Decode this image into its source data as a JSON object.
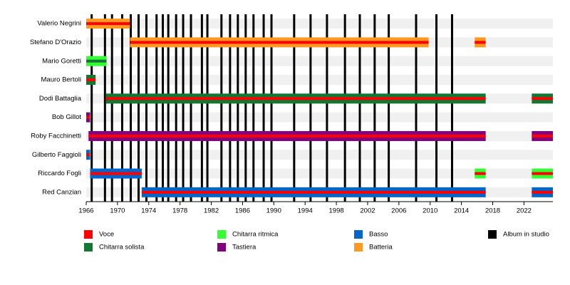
{
  "chart_data": {
    "type": "timeline",
    "xlim": [
      1966,
      2025.7
    ],
    "xticks": [
      1966,
      1970,
      1974,
      1978,
      1982,
      1986,
      1990,
      1994,
      1998,
      2002,
      2006,
      2010,
      2014,
      2018,
      2022
    ],
    "members": [
      {
        "name": "Valerio Negrini",
        "periods": [
          {
            "start": 1966,
            "end": 1971.6,
            "color": "#ff9922",
            "stripe": "#ff0000"
          }
        ]
      },
      {
        "name": "Stefano D'Orazio",
        "periods": [
          {
            "start": 1971.6,
            "end": 2009.8,
            "color": "#ff9922",
            "stripe": "#ff0000"
          },
          {
            "start": 2015.7,
            "end": 2017.1,
            "color": "#ff9922",
            "stripe": "#ff0000"
          }
        ]
      },
      {
        "name": "Mario Goretti",
        "periods": [
          {
            "start": 1966,
            "end": 1968.6,
            "color": "#33ff33",
            "stripe": "#117733"
          }
        ]
      },
      {
        "name": "Mauro Bertoli",
        "periods": [
          {
            "start": 1966,
            "end": 1967.2,
            "color": "#117733",
            "stripe": "#ff0000"
          }
        ]
      },
      {
        "name": "Dodi Battaglia",
        "periods": [
          {
            "start": 1968.5,
            "end": 2017.1,
            "color": "#117733",
            "stripe": "#ff0000"
          },
          {
            "start": 2023,
            "end": 2025.7,
            "color": "#117733",
            "stripe": "#ff0000"
          }
        ]
      },
      {
        "name": "Bob Gillot",
        "periods": [
          {
            "start": 1966,
            "end": 1966.5,
            "color": "#800080",
            "stripe": "#ff0000"
          }
        ]
      },
      {
        "name": "Roby Facchinetti",
        "periods": [
          {
            "start": 1966.3,
            "end": 2017.1,
            "color": "#800080",
            "stripe": "#ff0000"
          },
          {
            "start": 2023,
            "end": 2025.7,
            "color": "#800080",
            "stripe": "#ff0000"
          }
        ]
      },
      {
        "name": "Gilberto Faggioli",
        "periods": [
          {
            "start": 1966,
            "end": 1966.5,
            "color": "#0066cc",
            "stripe": "#ff0000"
          }
        ]
      },
      {
        "name": "Riccardo Fogli",
        "periods": [
          {
            "start": 1966.5,
            "end": 1973.1,
            "color": "#0066cc",
            "stripe": "#ff0000"
          },
          {
            "start": 2015.7,
            "end": 2017.1,
            "color": "#33ff33",
            "stripe": "#ff0000"
          },
          {
            "start": 2023,
            "end": 2025.7,
            "color": "#33ff33",
            "stripe": "#ff0000"
          }
        ]
      },
      {
        "name": "Red Canzian",
        "periods": [
          {
            "start": 1973.1,
            "end": 2017.1,
            "color": "#0066cc",
            "stripe": "#ff0000"
          },
          {
            "start": 2023,
            "end": 2025.7,
            "color": "#0066cc",
            "stripe": "#ff0000"
          }
        ]
      }
    ],
    "albums": {
      "name": "Album in studio",
      "color": "#000000",
      "x": [
        1966.7,
        1968.4,
        1969.3,
        1970.6,
        1971.7,
        1972.7,
        1973.7,
        1975.0,
        1975.8,
        1976.5,
        1977.5,
        1978.4,
        1979.4,
        1980.8,
        1981.5,
        1983.3,
        1984.4,
        1985.4,
        1986.4,
        1987.4,
        1988.7,
        1989.7,
        1992.6,
        1994.7,
        1996.8,
        1999.1,
        2001.0,
        2002.9,
        2004.7,
        2008.2,
        2010.8,
        2012.8
      ]
    },
    "roles": [
      {
        "name": "Voce",
        "color": "#ff0000"
      },
      {
        "name": "Chitarra ritmica",
        "color": "#33ff33"
      },
      {
        "name": "Basso",
        "color": "#0066cc"
      },
      {
        "name": "Chitarra solista",
        "color": "#117733"
      },
      {
        "name": "Tastiera",
        "color": "#800080"
      },
      {
        "name": "Batteria",
        "color": "#ff9922"
      }
    ]
  }
}
